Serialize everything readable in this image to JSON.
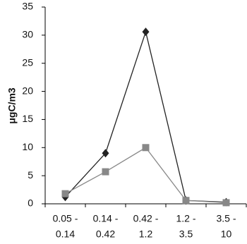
{
  "chart_data": {
    "type": "line",
    "y_label": "μgC/m3",
    "categories": [
      [
        "0.05 -",
        "0.14"
      ],
      [
        "0.14 -",
        "0.42"
      ],
      [
        "0.42 -",
        "1.2"
      ],
      [
        "1.2 -",
        "3.5"
      ],
      [
        "3.5 -",
        "10"
      ]
    ],
    "series": [
      {
        "color": "#222222",
        "marker": "diamond",
        "values": [
          1.2,
          9,
          30.6,
          0.6,
          0.3
        ]
      },
      {
        "color": "#888888",
        "marker": "square",
        "values": [
          1.8,
          5.7,
          10,
          0.6,
          0.2
        ]
      }
    ],
    "ylim": [
      0,
      35
    ],
    "yticks": [
      0,
      5,
      10,
      15,
      20,
      25,
      30,
      35
    ],
    "grid": false
  }
}
